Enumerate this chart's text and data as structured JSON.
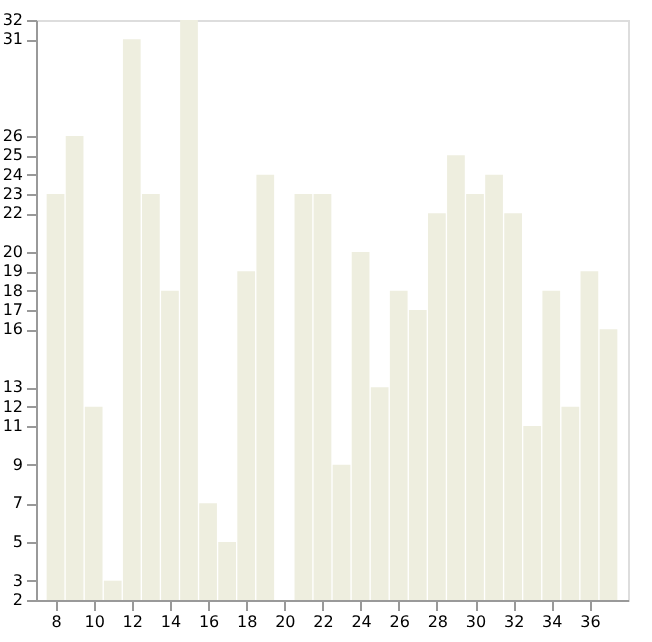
{
  "chart_data": {
    "type": "bar",
    "x": [
      8,
      9,
      10,
      11,
      12,
      13,
      14,
      15,
      16,
      17,
      18,
      19,
      20,
      21,
      22,
      23,
      24,
      25,
      26,
      27,
      28,
      29,
      30,
      31,
      32,
      33,
      34,
      35,
      36,
      37
    ],
    "values": [
      23,
      26,
      12,
      3,
      31,
      23,
      18,
      32,
      7,
      5,
      19,
      24,
      2,
      23,
      23,
      9,
      20,
      13,
      18,
      17,
      22,
      25,
      23,
      24,
      22,
      11,
      18,
      12,
      19,
      16
    ],
    "color": "#eeeedf",
    "xlim": [
      7.5,
      37.5
    ],
    "xticks": [
      8,
      10,
      12,
      14,
      16,
      18,
      20,
      22,
      24,
      26,
      28,
      30,
      32,
      34,
      36
    ],
    "ylim": [
      2,
      32
    ],
    "yticks": [
      2,
      3,
      5,
      7,
      9,
      11,
      12,
      13,
      16,
      17,
      18,
      19,
      20,
      22,
      23,
      24,
      25,
      26,
      31,
      32
    ],
    "grid": false
  }
}
